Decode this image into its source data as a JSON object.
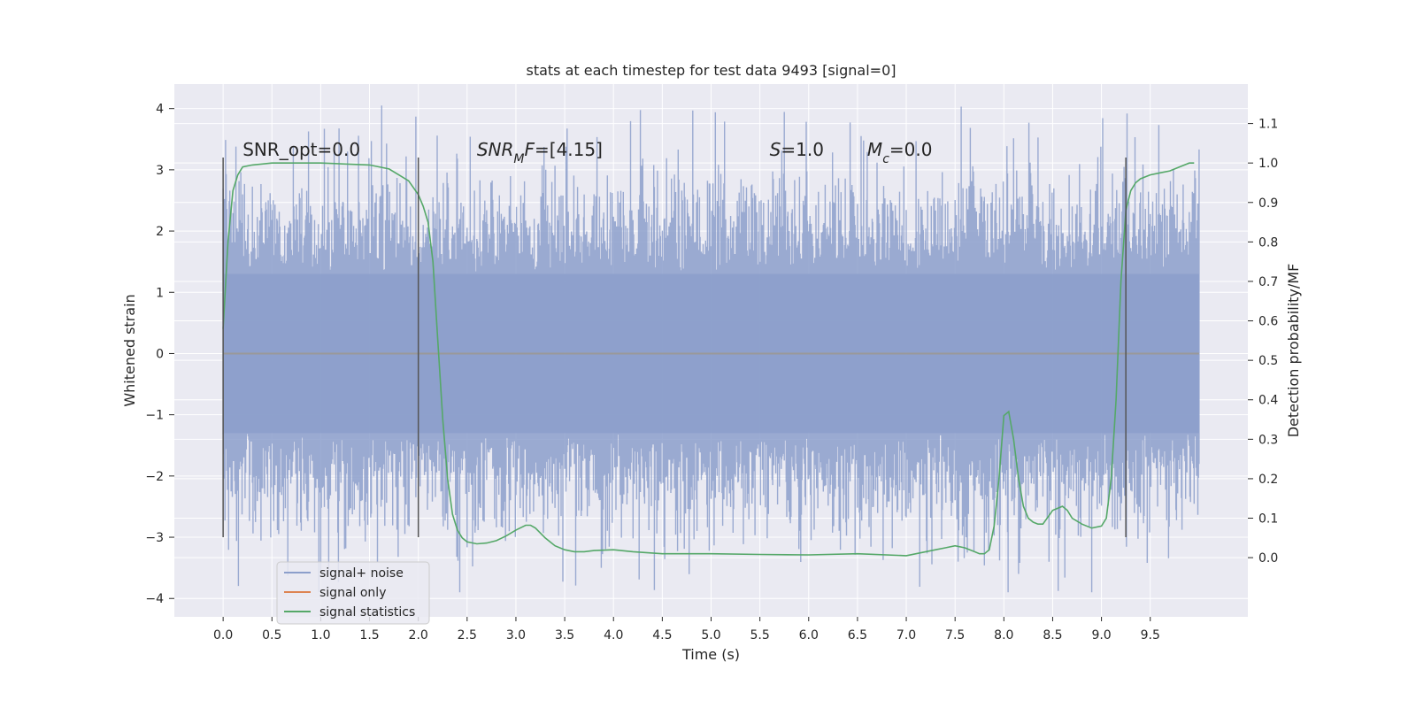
{
  "chart_data": {
    "type": "line",
    "title": "stats at each timestep for test data 9493 [signal=0]",
    "xlabel": "Time (s)",
    "ylabel": "Whitened strain",
    "ylabel_right": "Detection probability/MF",
    "xlim": [
      -0.5,
      10.5
    ],
    "ylim": [
      -4.3,
      4.4
    ],
    "ylim_right": [
      -0.15,
      1.2
    ],
    "x_ticks": [
      0.0,
      0.5,
      1.0,
      1.5,
      2.0,
      2.5,
      3.0,
      3.5,
      4.0,
      4.5,
      5.0,
      5.5,
      6.0,
      6.5,
      7.0,
      7.5,
      8.0,
      8.5,
      9.0,
      9.5
    ],
    "x_tick_labels": [
      "0.0",
      "0.5",
      "1.0",
      "1.5",
      "2.0",
      "2.5",
      "3.0",
      "3.5",
      "4.0",
      "4.5",
      "5.0",
      "5.5",
      "6.0",
      "6.5",
      "7.0",
      "7.5",
      "8.0",
      "8.5",
      "9.0",
      "9.5"
    ],
    "y_ticks": [
      4,
      3,
      2,
      1,
      0,
      -1,
      -2,
      -3,
      -4
    ],
    "y_tick_labels": [
      "4",
      "3",
      "2",
      "1",
      "0",
      "−1",
      "−2",
      "−3",
      "−4"
    ],
    "y_ticks_right": [
      1.1,
      1.0,
      0.9,
      0.8,
      0.7,
      0.6,
      0.5,
      0.4,
      0.3,
      0.2,
      0.1,
      0.0
    ],
    "y_tick_labels_right": [
      "1.1",
      "1.0",
      "0.9",
      "0.8",
      "0.7",
      "0.6",
      "0.5",
      "0.4",
      "0.3",
      "0.2",
      "0.1",
      "0.0"
    ],
    "grid": true,
    "legend_position": "lower-left",
    "annotations": [
      {
        "parts": [
          {
            "t": "SNR_opt=0.0",
            "i": false
          }
        ],
        "x": 0.2
      },
      {
        "parts": [
          {
            "t": "SNR",
            "i": true
          },
          {
            "t": "M",
            "i": true,
            "sub": true
          },
          {
            "t": "F",
            "i": true
          },
          {
            "t": "=[4.15]",
            "i": false
          }
        ],
        "x": 2.6
      },
      {
        "parts": [
          {
            "t": "S",
            "i": true
          },
          {
            "t": "=1.0",
            "i": false
          }
        ],
        "x": 5.6
      },
      {
        "parts": [
          {
            "t": "M",
            "i": true
          },
          {
            "t": "c",
            "i": true,
            "sub": true
          },
          {
            "t": "=0.0",
            "i": false
          }
        ],
        "x": 6.6
      }
    ],
    "annotation_y": 3.2,
    "vertical_markers": {
      "x": [
        0.0,
        2.0,
        9.25
      ],
      "y_range": [
        -3.0,
        3.2
      ],
      "color": "#555555"
    },
    "series": [
      {
        "name": "signal+ noise",
        "color": "#8c9fcb",
        "kind": "noise",
        "x_range": [
          0.0,
          10.0
        ],
        "core_amplitude": 1.3,
        "typical_peak_amplitude": 2.5,
        "max": 4.05,
        "min": -3.9
      },
      {
        "name": "signal only",
        "color": "#dd8452",
        "kind": "line",
        "x": [
          0.0,
          10.0
        ],
        "y": [
          0.0,
          0.0
        ]
      },
      {
        "name": "signal statistics",
        "color": "#55a868",
        "kind": "line",
        "axis": "right",
        "x": [
          0.0,
          0.05,
          0.1,
          0.15,
          0.2,
          0.3,
          0.5,
          1.0,
          1.5,
          1.7,
          1.8,
          1.9,
          2.0,
          2.05,
          2.1,
          2.15,
          2.2,
          2.25,
          2.3,
          2.35,
          2.4,
          2.45,
          2.5,
          2.6,
          2.7,
          2.8,
          2.9,
          3.0,
          3.1,
          3.15,
          3.2,
          3.3,
          3.4,
          3.5,
          3.6,
          3.7,
          3.8,
          4.0,
          4.2,
          4.5,
          5.0,
          5.5,
          6.0,
          6.5,
          7.0,
          7.3,
          7.4,
          7.5,
          7.6,
          7.7,
          7.75,
          7.8,
          7.85,
          7.9,
          7.95,
          8.0,
          8.05,
          8.1,
          8.15,
          8.2,
          8.25,
          8.3,
          8.35,
          8.4,
          8.5,
          8.6,
          8.65,
          8.7,
          8.8,
          8.9,
          9.0,
          9.05,
          9.1,
          9.15,
          9.2,
          9.25,
          9.3,
          9.35,
          9.4,
          9.5,
          9.6,
          9.7,
          9.8,
          9.9,
          9.95
        ],
        "y": [
          0.58,
          0.8,
          0.93,
          0.97,
          0.99,
          0.995,
          1.0,
          1.0,
          0.995,
          0.985,
          0.97,
          0.955,
          0.92,
          0.89,
          0.85,
          0.75,
          0.55,
          0.35,
          0.2,
          0.11,
          0.07,
          0.05,
          0.04,
          0.035,
          0.037,
          0.043,
          0.055,
          0.07,
          0.082,
          0.082,
          0.075,
          0.05,
          0.03,
          0.02,
          0.015,
          0.015,
          0.018,
          0.02,
          0.015,
          0.01,
          0.01,
          0.008,
          0.007,
          0.01,
          0.005,
          0.02,
          0.025,
          0.03,
          0.025,
          0.015,
          0.01,
          0.01,
          0.02,
          0.08,
          0.2,
          0.36,
          0.37,
          0.3,
          0.2,
          0.13,
          0.1,
          0.09,
          0.085,
          0.085,
          0.12,
          0.13,
          0.12,
          0.1,
          0.085,
          0.075,
          0.08,
          0.1,
          0.2,
          0.4,
          0.7,
          0.88,
          0.93,
          0.95,
          0.96,
          0.97,
          0.975,
          0.98,
          0.99,
          1.0,
          1.0
        ]
      }
    ]
  }
}
